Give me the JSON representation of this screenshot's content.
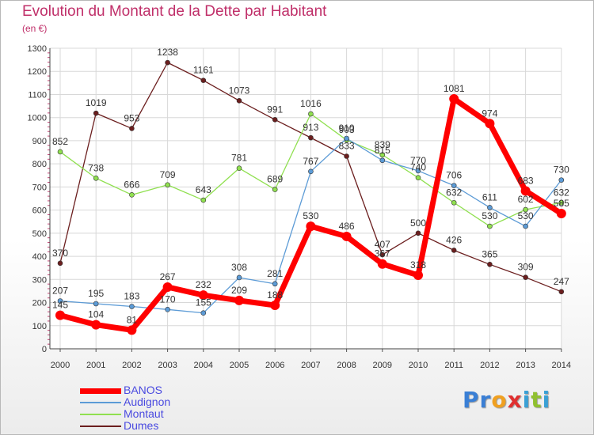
{
  "chart_data": {
    "type": "line",
    "title": "Evolution du Montant de la Dette par Habitant",
    "unit_label": "(en €)",
    "x": [
      "2000",
      "2001",
      "2002",
      "2003",
      "2004",
      "2005",
      "2006",
      "2007",
      "2008",
      "2009",
      "2010",
      "2011",
      "2012",
      "2013",
      "2014"
    ],
    "ylim": [
      0,
      1300
    ],
    "yticks": [
      0,
      100,
      200,
      300,
      400,
      500,
      600,
      700,
      800,
      900,
      1000,
      1100,
      1200,
      1300
    ],
    "grid": true,
    "legend_position": "bottom-left",
    "series": [
      {
        "name": "BANOS",
        "color": "#ff0000",
        "values": [
          145,
          104,
          81,
          267,
          232,
          209,
          188,
          530,
          486,
          367,
          318,
          1081,
          974,
          683,
          585
        ],
        "labels": [
          "145",
          "104",
          "81",
          "267",
          "232",
          "209",
          "188",
          "530",
          "486",
          "367",
          "318",
          "1081",
          "974",
          "683",
          "585"
        ]
      },
      {
        "name": "Audignon",
        "color": "#5c9bd6",
        "values": [
          207,
          195,
          183,
          170,
          155,
          308,
          281,
          767,
          910,
          815,
          770,
          706,
          611,
          530,
          730
        ],
        "labels": [
          "207",
          "195",
          "183",
          "170",
          "155",
          "308",
          "281",
          "767",
          "910",
          "815",
          "770",
          "706",
          "611",
          "530",
          "730"
        ]
      },
      {
        "name": "Montaut",
        "color": "#90e050",
        "values": [
          852,
          738,
          666,
          709,
          643,
          781,
          689,
          1016,
          903,
          839,
          740,
          632,
          530,
          602,
          632
        ],
        "labels": [
          "852",
          "738",
          "666",
          "709",
          "643",
          "781",
          "689",
          "1016",
          "903",
          "839",
          "740",
          "632",
          "530",
          "602",
          "632"
        ]
      },
      {
        "name": "Dumes",
        "color": "#6b1e1e",
        "values": [
          370,
          1019,
          953,
          1238,
          1161,
          1073,
          991,
          913,
          833,
          407,
          500,
          426,
          365,
          309,
          247
        ],
        "labels": [
          "370",
          "1019",
          "953",
          "1238",
          "1161",
          "1073",
          "991",
          "913",
          "833",
          "407",
          "500",
          "426",
          "365",
          "309",
          "247"
        ]
      }
    ]
  },
  "logo": {
    "letters": [
      {
        "char": "P",
        "color": "#3a7fd5"
      },
      {
        "char": "r",
        "color": "#3a7fd5"
      },
      {
        "char": "o",
        "color": "#f0a020"
      },
      {
        "char": "x",
        "color": "#e03030"
      },
      {
        "char": "i",
        "color": "#3aa0d5"
      },
      {
        "char": "t",
        "color": "#90c030"
      },
      {
        "char": "i",
        "color": "#3aa0d5"
      }
    ]
  }
}
